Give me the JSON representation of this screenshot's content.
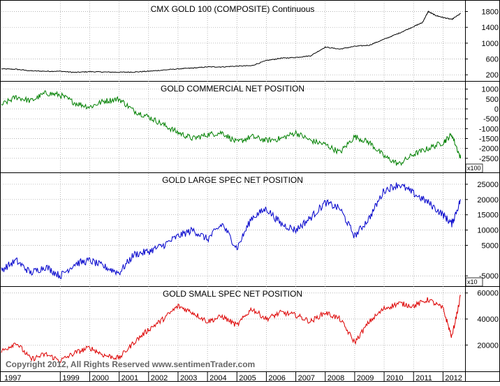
{
  "copyright": "Copyright 2012, All Rights Reserved  www.sentimenTrader.com",
  "x_axis_labels": [
    "1997",
    "1999",
    "2000",
    "2001",
    "2002",
    "2003",
    "2004",
    "2005",
    "2006",
    "2007",
    "2008",
    "2009",
    "2010",
    "2011",
    "2012"
  ],
  "chart_data": [
    {
      "type": "line",
      "title": "CMX GOLD 100 (COMPOSITE) Continuous",
      "color": "#000000",
      "multiplier_label": "",
      "ylim": [
        150,
        1950
      ],
      "yticks": [
        200,
        600,
        1000,
        1400,
        1800
      ],
      "ytick_labels": [
        "200",
        "600",
        "1000",
        "1400",
        "1800"
      ],
      "x": [
        1997.0,
        1997.5,
        1998.0,
        1998.5,
        1999.0,
        1999.5,
        2000.0,
        2000.5,
        2001.0,
        2001.5,
        2002.0,
        2002.5,
        2003.0,
        2003.5,
        2004.0,
        2004.5,
        2005.0,
        2005.5,
        2006.0,
        2006.5,
        2007.0,
        2007.5,
        2008.0,
        2008.5,
        2009.0,
        2009.5,
        2010.0,
        2010.5,
        2011.0,
        2011.3,
        2011.5,
        2011.75,
        2012.0,
        2012.3,
        2012.6
      ],
      "y": [
        350,
        340,
        300,
        290,
        290,
        260,
        280,
        270,
        265,
        270,
        290,
        320,
        350,
        370,
        400,
        400,
        420,
        430,
        560,
        620,
        640,
        680,
        900,
        850,
        920,
        950,
        1100,
        1250,
        1420,
        1520,
        1800,
        1700,
        1650,
        1600,
        1750
      ]
    },
    {
      "type": "line",
      "title": "GOLD COMMERCIAL NET POSITION",
      "color": "#008000",
      "multiplier_label": "x100",
      "ylim": [
        -3000,
        1200
      ],
      "yticks": [
        -2500,
        -2000,
        -1500,
        -1000,
        -500,
        0,
        500,
        1000
      ],
      "ytick_labels": [
        "-2500",
        "-2000",
        "-1500",
        "-1000",
        "-500",
        "0",
        "500",
        "1000"
      ],
      "x": [
        1997.0,
        1997.5,
        1998.0,
        1998.5,
        1999.0,
        1999.5,
        2000.0,
        2000.5,
        2001.0,
        2001.5,
        2002.0,
        2002.5,
        2003.0,
        2003.5,
        2004.0,
        2004.5,
        2005.0,
        2005.5,
        2006.0,
        2006.5,
        2007.0,
        2007.5,
        2008.0,
        2008.5,
        2009.0,
        2009.5,
        2010.0,
        2010.5,
        2011.0,
        2011.5,
        2012.0,
        2012.3,
        2012.6
      ],
      "y": [
        200,
        600,
        400,
        800,
        700,
        300,
        100,
        400,
        500,
        -100,
        -400,
        -800,
        -1200,
        -1500,
        -1300,
        -1200,
        -1700,
        -1400,
        -1600,
        -1500,
        -1200,
        -1600,
        -1800,
        -2200,
        -1400,
        -1700,
        -2400,
        -2800,
        -2300,
        -2000,
        -1700,
        -1300,
        -2500
      ]
    },
    {
      "type": "line",
      "title": "GOLD LARGE SPEC NET POSITION",
      "color": "#0000cc",
      "multiplier_label": "x10",
      "ylim": [
        -7000,
        27500
      ],
      "yticks": [
        -5000,
        5000,
        10000,
        15000,
        20000,
        25000
      ],
      "ytick_labels": [
        "-5000",
        "5000",
        "10000",
        "15000",
        "20000",
        "25000"
      ],
      "x": [
        1997.0,
        1997.5,
        1998.0,
        1998.5,
        1999.0,
        1999.5,
        2000.0,
        2000.5,
        2001.0,
        2001.5,
        2002.0,
        2002.5,
        2003.0,
        2003.5,
        2004.0,
        2004.5,
        2005.0,
        2005.5,
        2006.0,
        2006.5,
        2007.0,
        2007.5,
        2008.0,
        2008.5,
        2009.0,
        2009.5,
        2010.0,
        2010.5,
        2011.0,
        2011.5,
        2012.0,
        2012.3,
        2012.6
      ],
      "y": [
        -3000,
        0,
        -4000,
        -2000,
        -5000,
        -1000,
        0,
        -2000,
        -4000,
        2000,
        3000,
        5000,
        8000,
        10000,
        7000,
        12000,
        4000,
        14000,
        17000,
        12000,
        10000,
        14000,
        19000,
        17000,
        8000,
        14000,
        23000,
        25000,
        22000,
        19000,
        15000,
        12000,
        20000
      ]
    },
    {
      "type": "line",
      "title": "GOLD SMALL SPEC NET POSITION",
      "color": "#dd0000",
      "multiplier_label": "",
      "ylim": [
        3000,
        62000
      ],
      "yticks": [
        20000,
        40000,
        60000
      ],
      "ytick_labels": [
        "20000",
        "40000",
        "60000"
      ],
      "x": [
        1997.0,
        1997.5,
        1998.0,
        1998.5,
        1999.0,
        1999.5,
        2000.0,
        2000.5,
        2001.0,
        2001.5,
        2002.0,
        2002.5,
        2003.0,
        2003.5,
        2004.0,
        2004.5,
        2005.0,
        2005.5,
        2006.0,
        2006.5,
        2007.0,
        2007.5,
        2008.0,
        2008.5,
        2009.0,
        2009.5,
        2010.0,
        2010.5,
        2011.0,
        2011.5,
        2012.0,
        2012.3,
        2012.6
      ],
      "y": [
        15000,
        22000,
        9000,
        13000,
        8000,
        14000,
        18000,
        12000,
        10000,
        22000,
        32000,
        40000,
        50000,
        45000,
        38000,
        42000,
        35000,
        48000,
        40000,
        45000,
        43000,
        38000,
        45000,
        40000,
        22000,
        38000,
        48000,
        52000,
        50000,
        55000,
        48000,
        26000,
        58000
      ]
    }
  ]
}
